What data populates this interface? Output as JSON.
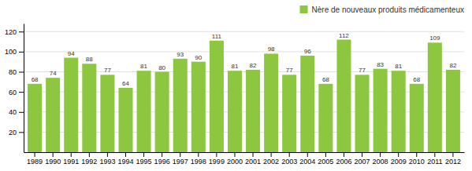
{
  "chart_data": {
    "type": "bar",
    "categories": [
      "1989",
      "1990",
      "1991",
      "1992",
      "1993",
      "1994",
      "1995",
      "1996",
      "1997",
      "1998",
      "1999",
      "2000",
      "2001",
      "2002",
      "2003",
      "2004",
      "2005",
      "2006",
      "2007",
      "2008",
      "2009",
      "2010",
      "2011",
      "2012"
    ],
    "series": [
      {
        "name": "Nère de nouveaux produits médicamenteux",
        "color": "#8DC63F",
        "values": [
          68,
          74,
          94,
          88,
          77,
          64,
          81,
          80,
          93,
          90,
          111,
          81,
          82,
          98,
          77,
          96,
          68,
          112,
          77,
          83,
          81,
          68,
          109,
          82
        ]
      }
    ],
    "ylim": [
      0,
      128
    ],
    "yticks": [
      20,
      40,
      60,
      80,
      100,
      120
    ],
    "grid": true,
    "legend": "upper right",
    "data_labels": true
  }
}
